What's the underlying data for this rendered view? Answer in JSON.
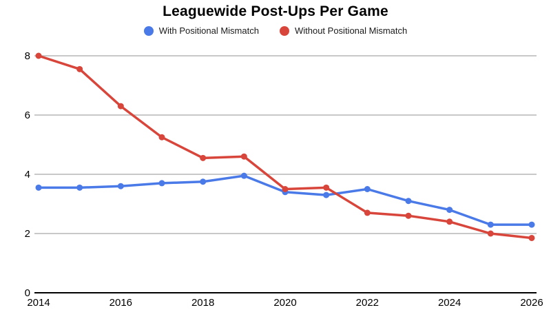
{
  "page": {
    "background": "#ffffff"
  },
  "chart_data": {
    "type": "line",
    "title": "Leaguewide Post-Ups Per Game",
    "xlabel": "",
    "ylabel": "",
    "x": [
      2014,
      2015,
      2016,
      2017,
      2018,
      2019,
      2020,
      2021,
      2022,
      2023,
      2024,
      2025,
      2026
    ],
    "x_tick_labels": [
      "2014",
      "2016",
      "2018",
      "2020",
      "2022",
      "2024",
      "2026"
    ],
    "y_ticks": [
      0,
      2,
      4,
      6,
      8
    ],
    "ylim": [
      0,
      8
    ],
    "grid": "horizontal-only",
    "legend_position": "top-center",
    "series": [
      {
        "name": "With Positional Mismatch",
        "color": "#4a79e8",
        "marker": "circle",
        "values": [
          3.55,
          3.55,
          3.6,
          3.7,
          3.75,
          3.95,
          3.4,
          3.3,
          3.5,
          3.1,
          2.8,
          2.3,
          2.3
        ]
      },
      {
        "name": "Without Positional Mismatch",
        "color": "#d8453a",
        "marker": "circle",
        "values": [
          8.0,
          7.55,
          6.3,
          5.25,
          4.55,
          4.6,
          3.5,
          3.55,
          2.7,
          2.6,
          2.4,
          2.0,
          1.85
        ]
      }
    ],
    "colors": {
      "axis_line": "#000000",
      "gridline": "#c8c8c8",
      "tick_text": "#000000",
      "title_text": "#000000"
    }
  }
}
